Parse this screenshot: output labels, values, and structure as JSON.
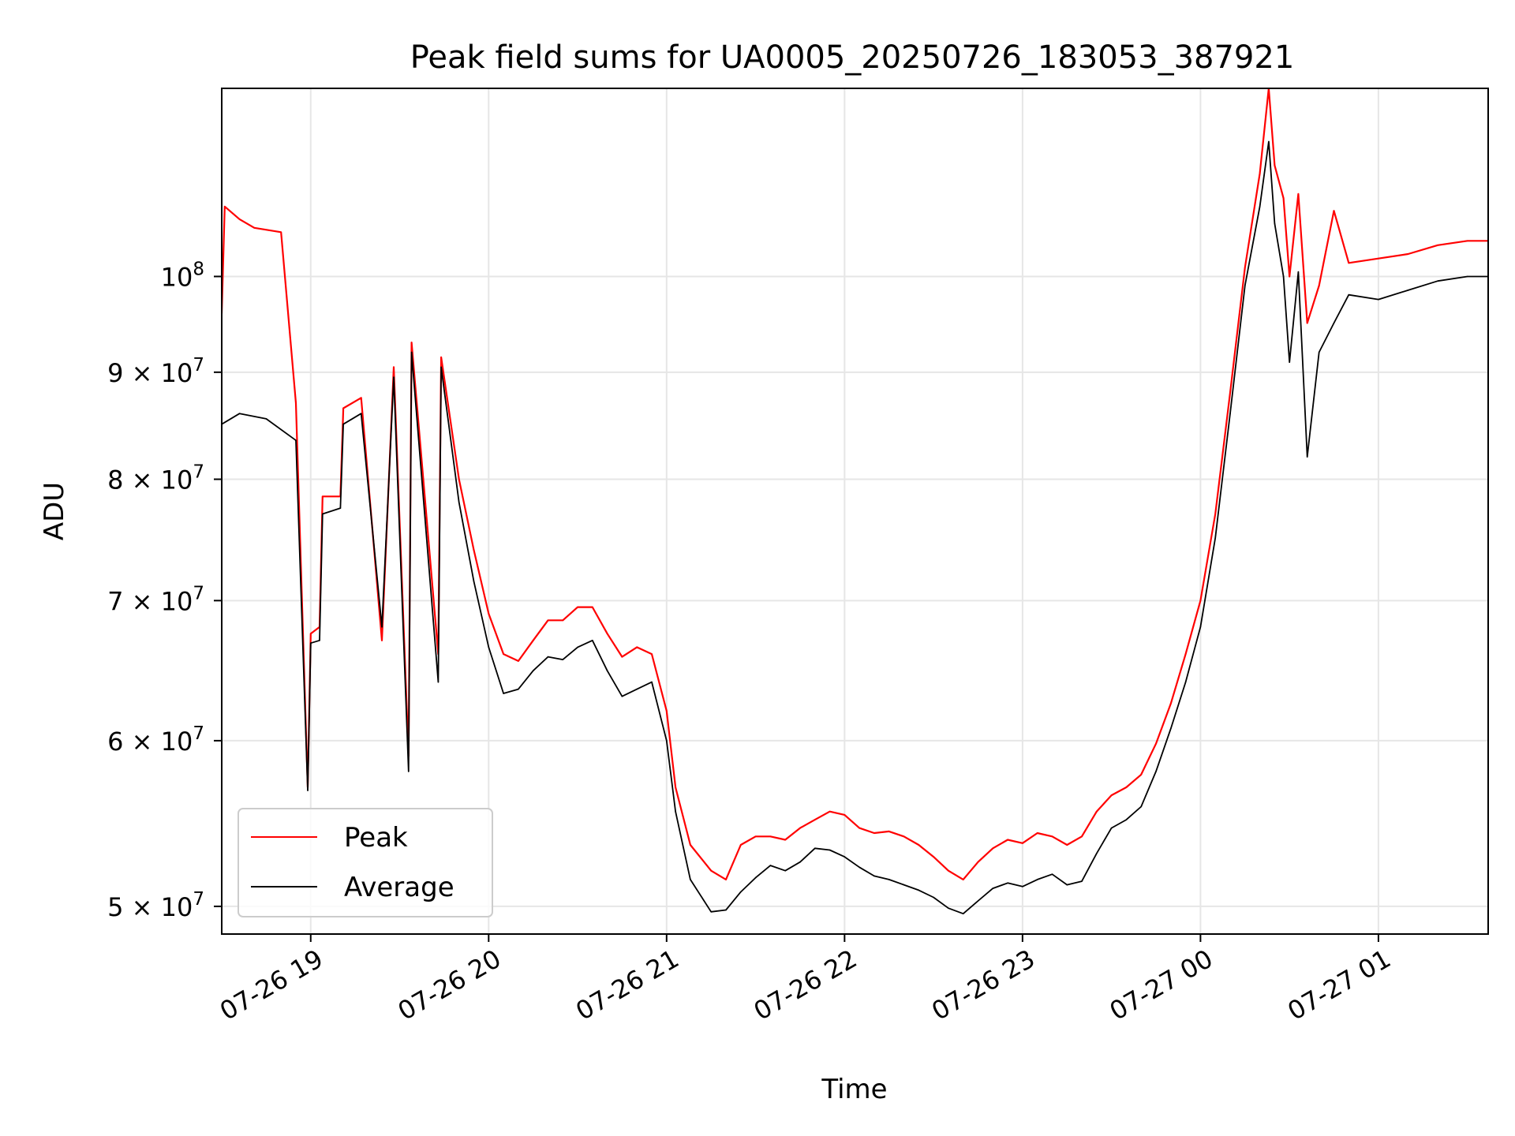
{
  "chart_data": {
    "type": "line",
    "title": "Peak field sums for UA0005_20250726_183053_387921",
    "xlabel": "Time",
    "ylabel": "ADU",
    "y_scale": "log",
    "ylim": [
      48500000,
      123000000
    ],
    "xlim": [
      "2025-07-26 18:30",
      "2025-07-27 01:37"
    ],
    "grid": true,
    "legend_position": "lower-left",
    "x_ticks": [
      {
        "t": "2025-07-26 19:00",
        "label": "07-26 19"
      },
      {
        "t": "2025-07-26 20:00",
        "label": "07-26 20"
      },
      {
        "t": "2025-07-26 21:00",
        "label": "07-26 21"
      },
      {
        "t": "2025-07-26 22:00",
        "label": "07-26 22"
      },
      {
        "t": "2025-07-26 23:00",
        "label": "07-26 23"
      },
      {
        "t": "2025-07-27 00:00",
        "label": "07-27 00"
      },
      {
        "t": "2025-07-27 01:00",
        "label": "07-27 01"
      }
    ],
    "y_ticks": [
      {
        "v": 50000000,
        "mant": "5",
        "exp": "7"
      },
      {
        "v": 60000000,
        "mant": "6",
        "exp": "7"
      },
      {
        "v": 70000000,
        "mant": "7",
        "exp": "7"
      },
      {
        "v": 80000000,
        "mant": "8",
        "exp": "7"
      },
      {
        "v": 90000000,
        "mant": "9",
        "exp": "7"
      },
      {
        "v": 100000000,
        "mant": "",
        "exp": "8"
      }
    ],
    "series": [
      {
        "name": "Peak",
        "color": "#ff0000",
        "points": [
          [
            "2025-07-26 18:30",
            96000000
          ],
          [
            "2025-07-26 18:31",
            108000000
          ],
          [
            "2025-07-26 18:36",
            106500000
          ],
          [
            "2025-07-26 18:41",
            105500000
          ],
          [
            "2025-07-26 18:50",
            105000000
          ],
          [
            "2025-07-26 18:55",
            87000000
          ],
          [
            "2025-07-26 18:59",
            57000000
          ],
          [
            "2025-07-26 19:00",
            67500000
          ],
          [
            "2025-07-26 19:03",
            68000000
          ],
          [
            "2025-07-26 19:04",
            78500000
          ],
          [
            "2025-07-26 19:10",
            78500000
          ],
          [
            "2025-07-26 19:11",
            86500000
          ],
          [
            "2025-07-26 19:17",
            87500000
          ],
          [
            "2025-07-26 19:24",
            67000000
          ],
          [
            "2025-07-26 19:28",
            90500000
          ],
          [
            "2025-07-26 19:33",
            59000000
          ],
          [
            "2025-07-26 19:34",
            93000000
          ],
          [
            "2025-07-26 19:43",
            66000000
          ],
          [
            "2025-07-26 19:44",
            91500000
          ],
          [
            "2025-07-26 19:50",
            80000000
          ],
          [
            "2025-07-26 19:55",
            74000000
          ],
          [
            "2025-07-26 20:00",
            69000000
          ],
          [
            "2025-07-26 20:05",
            66000000
          ],
          [
            "2025-07-26 20:10",
            65500000
          ],
          [
            "2025-07-26 20:15",
            67000000
          ],
          [
            "2025-07-26 20:20",
            68500000
          ],
          [
            "2025-07-26 20:25",
            68500000
          ],
          [
            "2025-07-26 20:30",
            69500000
          ],
          [
            "2025-07-26 20:35",
            69500000
          ],
          [
            "2025-07-26 20:40",
            67500000
          ],
          [
            "2025-07-26 20:45",
            65800000
          ],
          [
            "2025-07-26 20:50",
            66500000
          ],
          [
            "2025-07-26 20:55",
            66000000
          ],
          [
            "2025-07-26 21:00",
            62000000
          ],
          [
            "2025-07-26 21:03",
            57000000
          ],
          [
            "2025-07-26 21:08",
            53500000
          ],
          [
            "2025-07-26 21:15",
            52000000
          ],
          [
            "2025-07-26 21:20",
            51500000
          ],
          [
            "2025-07-26 21:25",
            53500000
          ],
          [
            "2025-07-26 21:30",
            54000000
          ],
          [
            "2025-07-26 21:35",
            54000000
          ],
          [
            "2025-07-26 21:40",
            53800000
          ],
          [
            "2025-07-26 21:45",
            54500000
          ],
          [
            "2025-07-26 21:50",
            55000000
          ],
          [
            "2025-07-26 21:55",
            55500000
          ],
          [
            "2025-07-26 22:00",
            55300000
          ],
          [
            "2025-07-26 22:05",
            54500000
          ],
          [
            "2025-07-26 22:10",
            54200000
          ],
          [
            "2025-07-26 22:15",
            54300000
          ],
          [
            "2025-07-26 22:20",
            54000000
          ],
          [
            "2025-07-26 22:25",
            53500000
          ],
          [
            "2025-07-26 22:30",
            52800000
          ],
          [
            "2025-07-26 22:35",
            52000000
          ],
          [
            "2025-07-26 22:40",
            51500000
          ],
          [
            "2025-07-26 22:45",
            52500000
          ],
          [
            "2025-07-26 22:50",
            53300000
          ],
          [
            "2025-07-26 22:55",
            53800000
          ],
          [
            "2025-07-26 23:00",
            53600000
          ],
          [
            "2025-07-26 23:05",
            54200000
          ],
          [
            "2025-07-26 23:10",
            54000000
          ],
          [
            "2025-07-26 23:15",
            53500000
          ],
          [
            "2025-07-26 23:20",
            54000000
          ],
          [
            "2025-07-26 23:25",
            55500000
          ],
          [
            "2025-07-26 23:30",
            56500000
          ],
          [
            "2025-07-26 23:35",
            57000000
          ],
          [
            "2025-07-26 23:40",
            57800000
          ],
          [
            "2025-07-26 23:45",
            59800000
          ],
          [
            "2025-07-26 23:50",
            62500000
          ],
          [
            "2025-07-26 23:55",
            66000000
          ],
          [
            "2025-07-27 00:00",
            70000000
          ],
          [
            "2025-07-27 00:05",
            77000000
          ],
          [
            "2025-07-27 00:10",
            88000000
          ],
          [
            "2025-07-27 00:15",
            101000000
          ],
          [
            "2025-07-27 00:20",
            112000000
          ],
          [
            "2025-07-27 00:23",
            123000000
          ],
          [
            "2025-07-27 00:25",
            113000000
          ],
          [
            "2025-07-27 00:28",
            109000000
          ],
          [
            "2025-07-27 00:30",
            100000000
          ],
          [
            "2025-07-27 00:33",
            109500000
          ],
          [
            "2025-07-27 00:36",
            95000000
          ],
          [
            "2025-07-27 00:40",
            99000000
          ],
          [
            "2025-07-27 00:45",
            107500000
          ],
          [
            "2025-07-27 00:50",
            101500000
          ],
          [
            "2025-07-27 01:00",
            102000000
          ],
          [
            "2025-07-27 01:10",
            102500000
          ],
          [
            "2025-07-27 01:20",
            103500000
          ],
          [
            "2025-07-27 01:30",
            104000000
          ],
          [
            "2025-07-27 01:37",
            104000000
          ]
        ]
      },
      {
        "name": "Average",
        "color": "#000000",
        "points": [
          [
            "2025-07-26 18:30",
            85000000
          ],
          [
            "2025-07-26 18:36",
            86000000
          ],
          [
            "2025-07-26 18:45",
            85500000
          ],
          [
            "2025-07-26 18:55",
            83500000
          ],
          [
            "2025-07-26 18:59",
            56800000
          ],
          [
            "2025-07-26 19:00",
            66800000
          ],
          [
            "2025-07-26 19:03",
            67000000
          ],
          [
            "2025-07-26 19:04",
            77000000
          ],
          [
            "2025-07-26 19:10",
            77500000
          ],
          [
            "2025-07-26 19:11",
            85000000
          ],
          [
            "2025-07-26 19:17",
            86000000
          ],
          [
            "2025-07-26 19:24",
            68000000
          ],
          [
            "2025-07-26 19:28",
            89500000
          ],
          [
            "2025-07-26 19:33",
            58000000
          ],
          [
            "2025-07-26 19:34",
            92000000
          ],
          [
            "2025-07-26 19:43",
            64000000
          ],
          [
            "2025-07-26 19:44",
            90500000
          ],
          [
            "2025-07-26 19:50",
            78000000
          ],
          [
            "2025-07-26 19:55",
            71500000
          ],
          [
            "2025-07-26 20:00",
            66500000
          ],
          [
            "2025-07-26 20:05",
            63200000
          ],
          [
            "2025-07-26 20:10",
            63500000
          ],
          [
            "2025-07-26 20:15",
            64800000
          ],
          [
            "2025-07-26 20:20",
            65800000
          ],
          [
            "2025-07-26 20:25",
            65600000
          ],
          [
            "2025-07-26 20:30",
            66500000
          ],
          [
            "2025-07-26 20:35",
            67000000
          ],
          [
            "2025-07-26 20:40",
            64800000
          ],
          [
            "2025-07-26 20:45",
            63000000
          ],
          [
            "2025-07-26 20:50",
            63500000
          ],
          [
            "2025-07-26 20:55",
            64000000
          ],
          [
            "2025-07-26 21:00",
            60000000
          ],
          [
            "2025-07-26 21:03",
            55500000
          ],
          [
            "2025-07-26 21:08",
            51500000
          ],
          [
            "2025-07-26 21:15",
            49700000
          ],
          [
            "2025-07-26 21:20",
            49800000
          ],
          [
            "2025-07-26 21:25",
            50800000
          ],
          [
            "2025-07-26 21:30",
            51600000
          ],
          [
            "2025-07-26 21:35",
            52300000
          ],
          [
            "2025-07-26 21:40",
            52000000
          ],
          [
            "2025-07-26 21:45",
            52500000
          ],
          [
            "2025-07-26 21:50",
            53300000
          ],
          [
            "2025-07-26 21:55",
            53200000
          ],
          [
            "2025-07-26 22:00",
            52800000
          ],
          [
            "2025-07-26 22:05",
            52200000
          ],
          [
            "2025-07-26 22:10",
            51700000
          ],
          [
            "2025-07-26 22:15",
            51500000
          ],
          [
            "2025-07-26 22:20",
            51200000
          ],
          [
            "2025-07-26 22:25",
            50900000
          ],
          [
            "2025-07-26 22:30",
            50500000
          ],
          [
            "2025-07-26 22:35",
            49900000
          ],
          [
            "2025-07-26 22:40",
            49600000
          ],
          [
            "2025-07-26 22:45",
            50300000
          ],
          [
            "2025-07-26 22:50",
            51000000
          ],
          [
            "2025-07-26 22:55",
            51300000
          ],
          [
            "2025-07-26 23:00",
            51100000
          ],
          [
            "2025-07-26 23:05",
            51500000
          ],
          [
            "2025-07-26 23:10",
            51800000
          ],
          [
            "2025-07-26 23:15",
            51200000
          ],
          [
            "2025-07-26 23:20",
            51400000
          ],
          [
            "2025-07-26 23:25",
            53000000
          ],
          [
            "2025-07-26 23:30",
            54500000
          ],
          [
            "2025-07-26 23:35",
            55000000
          ],
          [
            "2025-07-26 23:40",
            55800000
          ],
          [
            "2025-07-26 23:45",
            58000000
          ],
          [
            "2025-07-26 23:50",
            60800000
          ],
          [
            "2025-07-26 23:55",
            64000000
          ],
          [
            "2025-07-27 00:00",
            68000000
          ],
          [
            "2025-07-27 00:05",
            75000000
          ],
          [
            "2025-07-27 00:10",
            86000000
          ],
          [
            "2025-07-27 00:15",
            99000000
          ],
          [
            "2025-07-27 00:20",
            108000000
          ],
          [
            "2025-07-27 00:23",
            116000000
          ],
          [
            "2025-07-27 00:25",
            106000000
          ],
          [
            "2025-07-27 00:28",
            100000000
          ],
          [
            "2025-07-27 00:30",
            91000000
          ],
          [
            "2025-07-27 00:33",
            100500000
          ],
          [
            "2025-07-27 00:36",
            82000000
          ],
          [
            "2025-07-27 00:40",
            92000000
          ],
          [
            "2025-07-27 00:45",
            95000000
          ],
          [
            "2025-07-27 00:50",
            98000000
          ],
          [
            "2025-07-27 01:00",
            97500000
          ],
          [
            "2025-07-27 01:10",
            98500000
          ],
          [
            "2025-07-27 01:20",
            99500000
          ],
          [
            "2025-07-27 01:30",
            100000000
          ],
          [
            "2025-07-27 01:37",
            100000000
          ]
        ]
      }
    ]
  }
}
